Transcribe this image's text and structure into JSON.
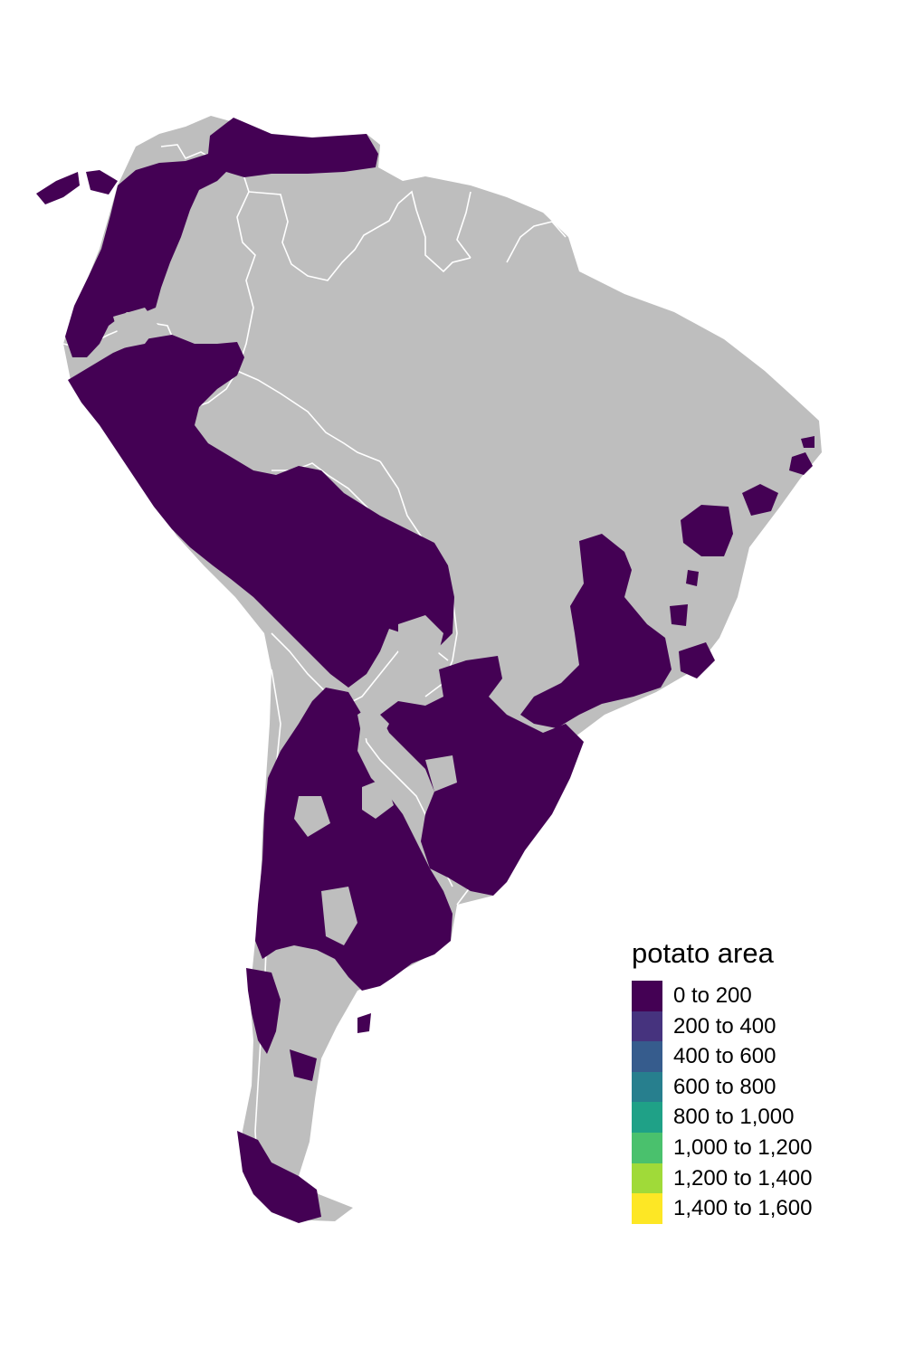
{
  "map": {
    "region": "South America",
    "base_color": "#bebebe",
    "border_color": "#ffffff",
    "fill_color": "#440154"
  },
  "legend": {
    "title": "potato area",
    "items": [
      {
        "label": "0 to 200",
        "color": "#440154"
      },
      {
        "label": "200 to 400",
        "color": "#46337e"
      },
      {
        "label": "400 to 600",
        "color": "#365c8d"
      },
      {
        "label": "600 to 800",
        "color": "#277f8e"
      },
      {
        "label": "800 to 1,000",
        "color": "#1fa187"
      },
      {
        "label": "1,000 to 1,200",
        "color": "#4ac16d"
      },
      {
        "label": "1,200 to 1,400",
        "color": "#a0da39"
      },
      {
        "label": "1,400 to 1,600",
        "color": "#fde725"
      }
    ]
  }
}
